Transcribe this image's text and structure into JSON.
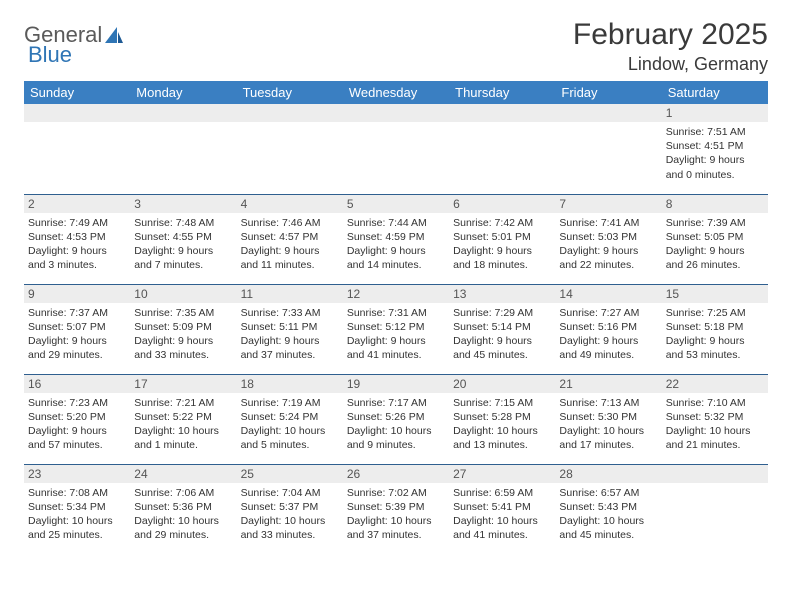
{
  "brand": {
    "part1": "General",
    "part2": "Blue",
    "part1_color": "#5a5a5a",
    "part2_color": "#2f75b5"
  },
  "title": "February 2025",
  "location": "Lindow, Germany",
  "colors": {
    "header_bg": "#3a7fc2",
    "header_text": "#ffffff",
    "daynum_bg": "#ededed",
    "row_border": "#2f5f8f",
    "text": "#333333"
  },
  "typography": {
    "title_fontsize": 30,
    "location_fontsize": 18,
    "dow_fontsize": 13,
    "cell_fontsize": 10.5
  },
  "dow": [
    "Sunday",
    "Monday",
    "Tuesday",
    "Wednesday",
    "Thursday",
    "Friday",
    "Saturday"
  ],
  "weeks": [
    [
      {
        "n": "",
        "sr": "",
        "ss": "",
        "dl": ""
      },
      {
        "n": "",
        "sr": "",
        "ss": "",
        "dl": ""
      },
      {
        "n": "",
        "sr": "",
        "ss": "",
        "dl": ""
      },
      {
        "n": "",
        "sr": "",
        "ss": "",
        "dl": ""
      },
      {
        "n": "",
        "sr": "",
        "ss": "",
        "dl": ""
      },
      {
        "n": "",
        "sr": "",
        "ss": "",
        "dl": ""
      },
      {
        "n": "1",
        "sr": "Sunrise: 7:51 AM",
        "ss": "Sunset: 4:51 PM",
        "dl": "Daylight: 9 hours and 0 minutes."
      }
    ],
    [
      {
        "n": "2",
        "sr": "Sunrise: 7:49 AM",
        "ss": "Sunset: 4:53 PM",
        "dl": "Daylight: 9 hours and 3 minutes."
      },
      {
        "n": "3",
        "sr": "Sunrise: 7:48 AM",
        "ss": "Sunset: 4:55 PM",
        "dl": "Daylight: 9 hours and 7 minutes."
      },
      {
        "n": "4",
        "sr": "Sunrise: 7:46 AM",
        "ss": "Sunset: 4:57 PM",
        "dl": "Daylight: 9 hours and 11 minutes."
      },
      {
        "n": "5",
        "sr": "Sunrise: 7:44 AM",
        "ss": "Sunset: 4:59 PM",
        "dl": "Daylight: 9 hours and 14 minutes."
      },
      {
        "n": "6",
        "sr": "Sunrise: 7:42 AM",
        "ss": "Sunset: 5:01 PM",
        "dl": "Daylight: 9 hours and 18 minutes."
      },
      {
        "n": "7",
        "sr": "Sunrise: 7:41 AM",
        "ss": "Sunset: 5:03 PM",
        "dl": "Daylight: 9 hours and 22 minutes."
      },
      {
        "n": "8",
        "sr": "Sunrise: 7:39 AM",
        "ss": "Sunset: 5:05 PM",
        "dl": "Daylight: 9 hours and 26 minutes."
      }
    ],
    [
      {
        "n": "9",
        "sr": "Sunrise: 7:37 AM",
        "ss": "Sunset: 5:07 PM",
        "dl": "Daylight: 9 hours and 29 minutes."
      },
      {
        "n": "10",
        "sr": "Sunrise: 7:35 AM",
        "ss": "Sunset: 5:09 PM",
        "dl": "Daylight: 9 hours and 33 minutes."
      },
      {
        "n": "11",
        "sr": "Sunrise: 7:33 AM",
        "ss": "Sunset: 5:11 PM",
        "dl": "Daylight: 9 hours and 37 minutes."
      },
      {
        "n": "12",
        "sr": "Sunrise: 7:31 AM",
        "ss": "Sunset: 5:12 PM",
        "dl": "Daylight: 9 hours and 41 minutes."
      },
      {
        "n": "13",
        "sr": "Sunrise: 7:29 AM",
        "ss": "Sunset: 5:14 PM",
        "dl": "Daylight: 9 hours and 45 minutes."
      },
      {
        "n": "14",
        "sr": "Sunrise: 7:27 AM",
        "ss": "Sunset: 5:16 PM",
        "dl": "Daylight: 9 hours and 49 minutes."
      },
      {
        "n": "15",
        "sr": "Sunrise: 7:25 AM",
        "ss": "Sunset: 5:18 PM",
        "dl": "Daylight: 9 hours and 53 minutes."
      }
    ],
    [
      {
        "n": "16",
        "sr": "Sunrise: 7:23 AM",
        "ss": "Sunset: 5:20 PM",
        "dl": "Daylight: 9 hours and 57 minutes."
      },
      {
        "n": "17",
        "sr": "Sunrise: 7:21 AM",
        "ss": "Sunset: 5:22 PM",
        "dl": "Daylight: 10 hours and 1 minute."
      },
      {
        "n": "18",
        "sr": "Sunrise: 7:19 AM",
        "ss": "Sunset: 5:24 PM",
        "dl": "Daylight: 10 hours and 5 minutes."
      },
      {
        "n": "19",
        "sr": "Sunrise: 7:17 AM",
        "ss": "Sunset: 5:26 PM",
        "dl": "Daylight: 10 hours and 9 minutes."
      },
      {
        "n": "20",
        "sr": "Sunrise: 7:15 AM",
        "ss": "Sunset: 5:28 PM",
        "dl": "Daylight: 10 hours and 13 minutes."
      },
      {
        "n": "21",
        "sr": "Sunrise: 7:13 AM",
        "ss": "Sunset: 5:30 PM",
        "dl": "Daylight: 10 hours and 17 minutes."
      },
      {
        "n": "22",
        "sr": "Sunrise: 7:10 AM",
        "ss": "Sunset: 5:32 PM",
        "dl": "Daylight: 10 hours and 21 minutes."
      }
    ],
    [
      {
        "n": "23",
        "sr": "Sunrise: 7:08 AM",
        "ss": "Sunset: 5:34 PM",
        "dl": "Daylight: 10 hours and 25 minutes."
      },
      {
        "n": "24",
        "sr": "Sunrise: 7:06 AM",
        "ss": "Sunset: 5:36 PM",
        "dl": "Daylight: 10 hours and 29 minutes."
      },
      {
        "n": "25",
        "sr": "Sunrise: 7:04 AM",
        "ss": "Sunset: 5:37 PM",
        "dl": "Daylight: 10 hours and 33 minutes."
      },
      {
        "n": "26",
        "sr": "Sunrise: 7:02 AM",
        "ss": "Sunset: 5:39 PM",
        "dl": "Daylight: 10 hours and 37 minutes."
      },
      {
        "n": "27",
        "sr": "Sunrise: 6:59 AM",
        "ss": "Sunset: 5:41 PM",
        "dl": "Daylight: 10 hours and 41 minutes."
      },
      {
        "n": "28",
        "sr": "Sunrise: 6:57 AM",
        "ss": "Sunset: 5:43 PM",
        "dl": "Daylight: 10 hours and 45 minutes."
      },
      {
        "n": "",
        "sr": "",
        "ss": "",
        "dl": ""
      }
    ]
  ]
}
